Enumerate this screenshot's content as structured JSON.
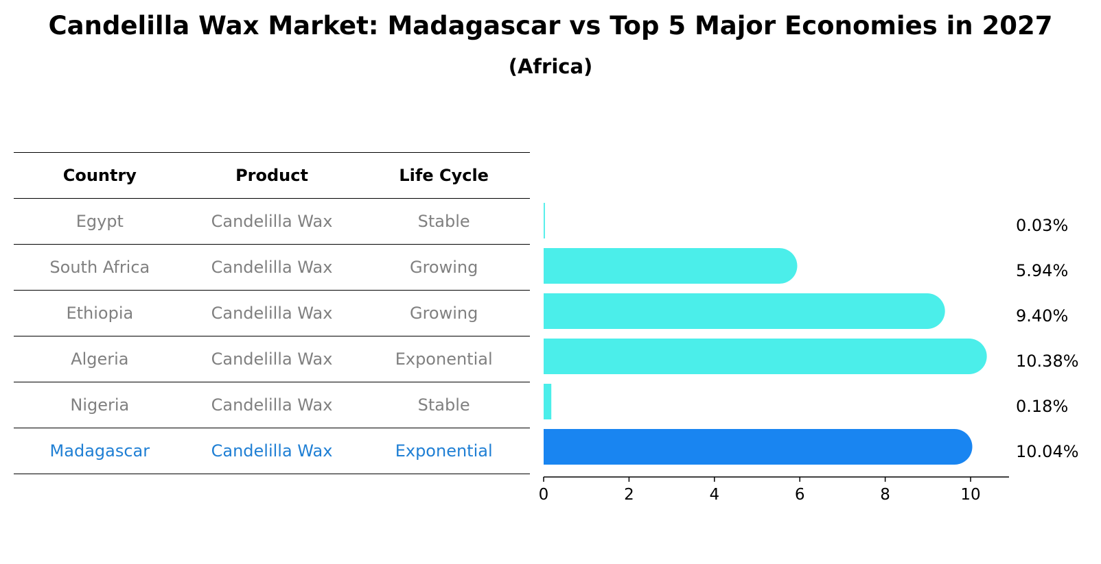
{
  "title": "Candelilla Wax Market: Madagascar vs Top 5 Major Economies in 2027",
  "subtitle": "(Africa)",
  "table": {
    "headers": [
      "Country",
      "Product",
      "Life Cycle"
    ],
    "rows": [
      [
        "Egypt",
        "Candelilla Wax",
        "Stable"
      ],
      [
        "South Africa",
        "Candelilla Wax",
        "Growing"
      ],
      [
        "Ethiopia",
        "Candelilla Wax",
        "Growing"
      ],
      [
        "Algeria",
        "Candelilla Wax",
        "Exponential"
      ],
      [
        "Nigeria",
        "Candelilla Wax",
        "Stable"
      ],
      [
        "Madagascar",
        "Candelilla Wax",
        "Exponential"
      ]
    ]
  },
  "chart_data": {
    "type": "bar",
    "orientation": "horizontal",
    "categories": [
      "Egypt",
      "South Africa",
      "Ethiopia",
      "Algeria",
      "Nigeria",
      "Madagascar"
    ],
    "values": [
      0.03,
      5.94,
      9.4,
      10.38,
      0.18,
      10.04
    ],
    "labels": [
      "0.03%",
      "5.94%",
      "9.40%",
      "10.38%",
      "0.18%",
      "10.04%"
    ],
    "highlight": "Madagascar",
    "xlim": [
      0,
      10.9
    ],
    "xticks": [
      0,
      2,
      4,
      6,
      8,
      10
    ],
    "colors": {
      "default": "#4beeea",
      "highlight": "#1985f1",
      "highlight_text": "#1f7fd4",
      "muted_text": "#808080"
    }
  }
}
